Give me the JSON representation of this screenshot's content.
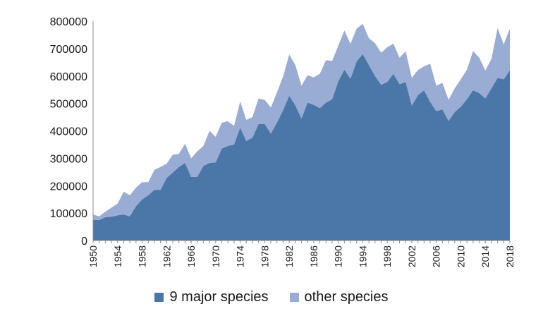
{
  "chart_data": {
    "type": "area",
    "stacked": true,
    "title": "",
    "xlabel": "",
    "ylabel": "",
    "ylim": [
      0,
      800000
    ],
    "yticks": [
      "0",
      "100000",
      "200000",
      "300000",
      "400000",
      "500000",
      "600000",
      "700000",
      "800000"
    ],
    "xticks": [
      "1950",
      "1954",
      "1958",
      "1962",
      "1966",
      "1970",
      "1974",
      "1978",
      "1982",
      "1986",
      "1990",
      "1994",
      "1998",
      "2002",
      "2006",
      "2010",
      "2014",
      "2018"
    ],
    "x": [
      1950,
      1951,
      1952,
      1953,
      1954,
      1955,
      1956,
      1957,
      1958,
      1959,
      1960,
      1961,
      1962,
      1963,
      1964,
      1965,
      1966,
      1967,
      1968,
      1969,
      1970,
      1971,
      1972,
      1973,
      1974,
      1975,
      1976,
      1977,
      1978,
      1979,
      1980,
      1981,
      1982,
      1983,
      1984,
      1985,
      1986,
      1987,
      1988,
      1989,
      1990,
      1991,
      1992,
      1993,
      1994,
      1995,
      1996,
      1997,
      1998,
      1999,
      2000,
      2001,
      2002,
      2003,
      2004,
      2005,
      2006,
      2007,
      2008,
      2009,
      2010,
      2011,
      2012,
      2013,
      2014,
      2015,
      2016,
      2017,
      2018
    ],
    "series": [
      {
        "name": "9 major species",
        "color": "#4a76a8",
        "values": [
          75000,
          75000,
          85000,
          87000,
          92000,
          95000,
          88000,
          125000,
          150000,
          165000,
          185000,
          185000,
          228000,
          248000,
          268000,
          283000,
          232000,
          232000,
          272000,
          283000,
          285000,
          335000,
          345000,
          350000,
          412000,
          363000,
          375000,
          425000,
          425000,
          390000,
          430000,
          475000,
          528000,
          493000,
          445000,
          503000,
          495000,
          483000,
          503000,
          515000,
          580000,
          623000,
          590000,
          653000,
          680000,
          640000,
          600000,
          568000,
          578000,
          608000,
          570000,
          578000,
          492000,
          530000,
          548000,
          505000,
          472000,
          478000,
          436000,
          468000,
          488000,
          515000,
          548000,
          538000,
          518000,
          555000,
          593000,
          588000,
          620000
        ]
      },
      {
        "name": "other species",
        "color": "#98acd4",
        "values": [
          20000,
          13000,
          20000,
          33000,
          43000,
          83000,
          77000,
          68000,
          63000,
          48000,
          73000,
          83000,
          52000,
          65000,
          48000,
          70000,
          68000,
          93000,
          73000,
          117000,
          93000,
          95000,
          90000,
          68000,
          95000,
          77000,
          75000,
          93000,
          88000,
          95000,
          110000,
          123000,
          150000,
          147000,
          120000,
          100000,
          100000,
          125000,
          155000,
          140000,
          130000,
          143000,
          127000,
          120000,
          110000,
          98000,
          120000,
          117000,
          127000,
          110000,
          97000,
          112000,
          101000,
          92000,
          87000,
          140000,
          93000,
          97000,
          77000,
          87000,
          100000,
          108000,
          143000,
          129000,
          102000,
          108000,
          182000,
          127000,
          153000
        ]
      }
    ],
    "legend_position": "bottom",
    "grid": false
  }
}
